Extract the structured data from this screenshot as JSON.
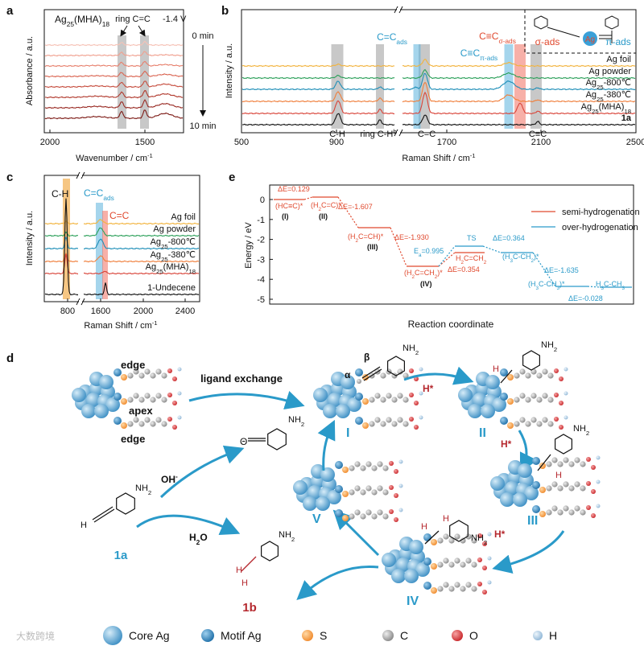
{
  "panel_labels": [
    "a",
    "b",
    "c",
    "e",
    "d"
  ],
  "a": {
    "title": [
      "Ag",
      "25",
      "(MHA)",
      "18"
    ],
    "peak_label": "ring C=C",
    "potential": "-1.4 V",
    "start": "0 min",
    "end": "10 min",
    "ylabel": "Absorbance / a.u.",
    "xlabel": [
      "Wavenumber / cm",
      "-1"
    ],
    "xticks": [
      "2000",
      "1500"
    ]
  },
  "b": {
    "xticks": [
      "500",
      "900",
      "1700",
      "2100",
      "2500"
    ],
    "ylabel": "Intensity / a.u.",
    "xlabel": [
      "Raman Shift / cm",
      "-1"
    ],
    "samples": [
      [
        "Ag foil"
      ],
      [
        "Ag powder"
      ],
      [
        "Ag",
        "25",
        "-800℃"
      ],
      [
        "Ag",
        "25",
        "-380℃"
      ],
      [
        "Ag",
        "25",
        "(MHA)",
        "18"
      ],
      [
        "1a"
      ]
    ],
    "peak_ch": "C-H",
    "peak_ring": [
      "ring C-H",
      "b"
    ],
    "peak_cc": "C=C",
    "peak_ccc": "C≡C",
    "peak_ads": [
      "C=C",
      "ads"
    ],
    "peak_pi": [
      "C≡C",
      "π-ads"
    ],
    "peak_sigma": [
      "C≡C",
      "σ-ads"
    ],
    "inset": {
      "sigma": "σ-ads",
      "ag": "Ag",
      "pi": "π-ads"
    }
  },
  "c": {
    "xticks": [
      "800",
      "1600",
      "2000",
      "2400"
    ],
    "ylabel": "Intensity / a.u.",
    "xlabel": [
      "Raman Shift / cm",
      "-1"
    ],
    "samples": [
      [
        "Ag foil"
      ],
      [
        "Ag powder"
      ],
      [
        "Ag",
        "25",
        "-800℃"
      ],
      [
        "Ag",
        "25",
        "-380℃"
      ],
      [
        "Ag",
        "25",
        "(MHA)",
        "18"
      ],
      [
        "1-Undecene"
      ]
    ],
    "peak_ch": "C-H",
    "peak_ads": [
      "C=C",
      "ads"
    ],
    "peak_cc": "C=C"
  },
  "e": {
    "yticks": [
      "0",
      "-1",
      "-2",
      "-3",
      "-4",
      "-5"
    ],
    "ylabel": "Energy / eV",
    "xlabel": "Reaction coordinate",
    "legend": [
      "semi-hydrogenation",
      "over-hydrogenation"
    ],
    "labels": [
      [
        "ΔE=0.129"
      ],
      [
        "(HC≡C)*"
      ],
      [
        "(I)"
      ],
      [
        "(H",
        "2",
        "C=C)*"
      ],
      [
        "(II)"
      ],
      [
        "ΔE=-1.607"
      ],
      [
        "(H",
        "2",
        "C=CH)*"
      ],
      [
        "(III)"
      ],
      [
        "ΔE=-1.930"
      ],
      [
        "(H",
        "2",
        "C=CH",
        "2",
        ")*"
      ],
      [
        "(IV)"
      ],
      [
        "ΔE=0.354"
      ],
      [
        "H",
        "2",
        "C=CH",
        "2"
      ],
      [
        "E",
        "a",
        "=0.995"
      ],
      [
        "TS"
      ],
      [
        "ΔE=0.364"
      ],
      [
        "(H",
        "3",
        "C-CH",
        "2",
        ")*"
      ],
      [
        "ΔE=-1.635"
      ],
      [
        "(H",
        "3",
        "C-CH",
        "3",
        ")*"
      ],
      [
        "H",
        "3",
        "C-CH",
        "3"
      ],
      [
        "ΔE=-0.028"
      ]
    ]
  },
  "d": {
    "edge_top": "edge",
    "apex": "apex",
    "edge_bottom": "edge",
    "ligand_exchange": "ligand exchange",
    "nh2": [
      "NH",
      "2"
    ],
    "oh": [
      "OH",
      "-"
    ],
    "h2o": [
      "H",
      "2",
      "O"
    ],
    "h": "H",
    "anion": "Θ",
    "alpha": "α",
    "beta": "β",
    "compound_1a": "1a",
    "compound_1b": "1b",
    "intermediates": [
      "I",
      "II",
      "III",
      "IV",
      "V"
    ],
    "h_star": [
      "H*",
      "H*",
      "H*"
    ],
    "legend": [
      "Core Ag",
      "Motif Ag",
      "S",
      "C",
      "O",
      "H"
    ],
    "watermark": "大数跨境"
  }
}
